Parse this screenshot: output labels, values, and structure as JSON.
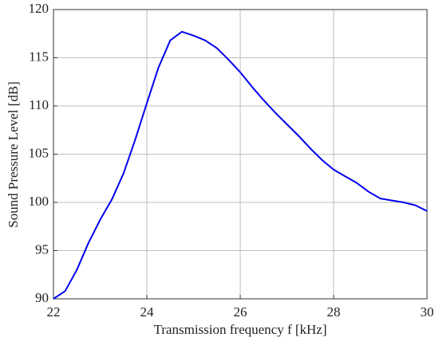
{
  "chart_data": {
    "type": "line",
    "xlabel": "Transmission frequency f [kHz]",
    "ylabel": "Sound Pressure Level [dB]",
    "x": [
      22,
      22.25,
      22.5,
      22.75,
      23,
      23.25,
      23.5,
      23.75,
      24,
      24.25,
      24.5,
      24.75,
      25,
      25.25,
      25.5,
      25.75,
      26,
      26.25,
      26.5,
      26.75,
      27,
      27.25,
      27.5,
      27.75,
      28,
      28.25,
      28.5,
      28.75,
      29,
      29.25,
      29.5,
      29.75,
      30
    ],
    "series": [
      {
        "color": "#0000ee",
        "values": [
          90.0,
          90.8,
          93.0,
          95.8,
          98.2,
          100.3,
          103.0,
          106.5,
          110.3,
          114.0,
          116.8,
          117.7,
          117.3,
          116.8,
          116.0,
          114.8,
          113.5,
          112.0,
          110.6,
          109.3,
          108.1,
          106.9,
          105.6,
          104.4,
          103.4,
          102.7,
          102.0,
          101.1,
          100.4,
          100.2,
          100.0,
          99.7,
          99.1
        ]
      }
    ],
    "xlim": [
      22,
      30
    ],
    "xticks": [
      22,
      24,
      26,
      28,
      30
    ],
    "ylim": [
      90,
      120
    ],
    "yticks": [
      90,
      95,
      100,
      105,
      110,
      115,
      120
    ],
    "grid": true
  }
}
